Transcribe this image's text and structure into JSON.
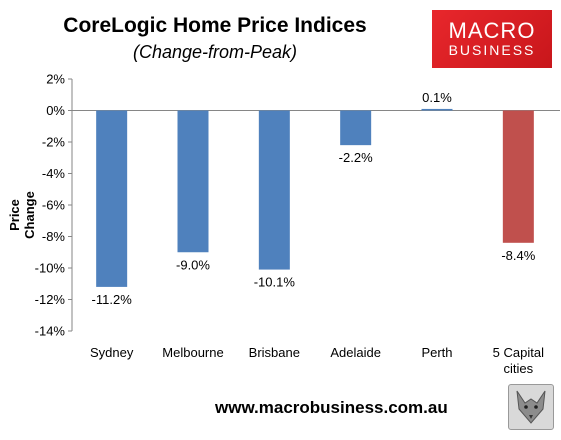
{
  "header": {
    "title": "CoreLogic Home Price Indices",
    "subtitle": "(Change-from-Peak)"
  },
  "logo": {
    "line1": "MACRO",
    "line2": "BUSINESS"
  },
  "footer": {
    "url": "www.macrobusiness.com.au"
  },
  "chart_data": {
    "type": "bar",
    "title": "CoreLogic Home Price Indices",
    "subtitle": "(Change-from-Peak)",
    "ylabel": "Price Change",
    "xlabel": "",
    "categories": [
      "Sydney",
      "Melbourne",
      "Brisbane",
      "Adelaide",
      "Perth",
      "5 Capital cities"
    ],
    "category_lines": [
      [
        "Sydney"
      ],
      [
        "Melbourne"
      ],
      [
        "Brisbane"
      ],
      [
        "Adelaide"
      ],
      [
        "Perth"
      ],
      [
        "5 Capital",
        "cities"
      ]
    ],
    "values": [
      -11.2,
      -9.0,
      -10.1,
      -2.2,
      0.1,
      -8.4
    ],
    "value_labels": [
      "-11.2%",
      "-9.0%",
      "-10.1%",
      "-2.2%",
      "0.1%",
      "-8.4%"
    ],
    "bar_colors": [
      "#4f81bd",
      "#4f81bd",
      "#4f81bd",
      "#4f81bd",
      "#4f81bd",
      "#c0504d"
    ],
    "ylim": [
      -14,
      2
    ],
    "yticks": [
      2,
      0,
      -2,
      -4,
      -6,
      -8,
      -10,
      -12,
      -14
    ],
    "ytick_labels": [
      "2%",
      "0%",
      "-2%",
      "-4%",
      "-6%",
      "-8%",
      "-10%",
      "-12%",
      "-14%"
    ],
    "grid": false,
    "legend": "none"
  }
}
